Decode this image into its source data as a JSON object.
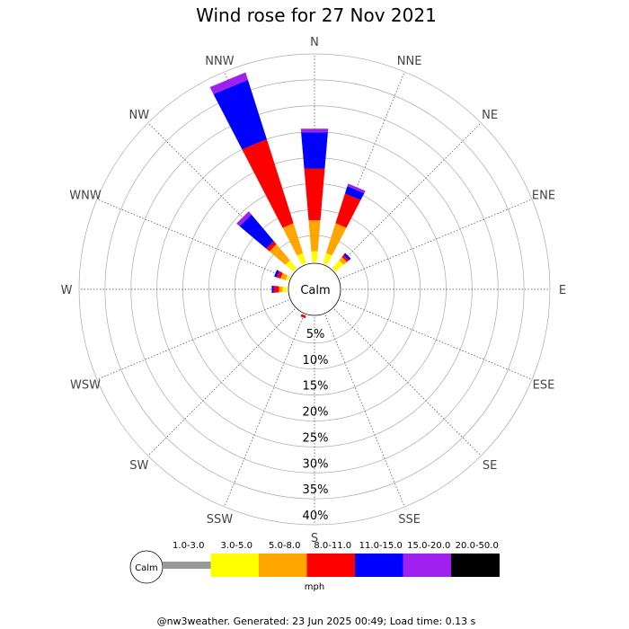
{
  "chart_data": {
    "type": "wind-rose",
    "title": "Wind rose for 27 Nov 2021",
    "directions": [
      "N",
      "NNE",
      "NE",
      "ENE",
      "E",
      "ESE",
      "SE",
      "SSE",
      "S",
      "SSW",
      "SW",
      "WSW",
      "W",
      "WNW",
      "NW",
      "NNW"
    ],
    "radial_ticks": [
      "5%",
      "10%",
      "15%",
      "20%",
      "25%",
      "30%",
      "35%",
      "40%"
    ],
    "radial_max": 40,
    "calm_label": "Calm",
    "units": "mph",
    "bins": [
      {
        "label": "1.0-3.0",
        "color": "#999999"
      },
      {
        "label": "3.0-5.0",
        "color": "#ffff00"
      },
      {
        "label": "5.0-8.0",
        "color": "#ffa500"
      },
      {
        "label": "8.0-11.0",
        "color": "#ff0000"
      },
      {
        "label": "11.0-15.0",
        "color": "#0000ff"
      },
      {
        "label": "15.0-20.0",
        "color": "#a020f0"
      },
      {
        "label": "20.0-50.0",
        "color": "#000000"
      }
    ],
    "frequencies": [
      {
        "direction": "N",
        "cumulative": [
          0,
          2.0,
          8.0,
          18.0,
          25.0,
          25.7,
          25.7
        ]
      },
      {
        "direction": "NNE",
        "cumulative": [
          0,
          2.0,
          8.0,
          14.0,
          15.5,
          16.0,
          16.0
        ]
      },
      {
        "direction": "NE",
        "cumulative": [
          0,
          2.0,
          2.8,
          3.3,
          3.8,
          3.8,
          3.8
        ]
      },
      {
        "direction": "ENE",
        "cumulative": [
          0,
          0,
          0,
          0,
          0,
          0,
          0
        ]
      },
      {
        "direction": "E",
        "cumulative": [
          0,
          0,
          0,
          0,
          0,
          0,
          0
        ]
      },
      {
        "direction": "ESE",
        "cumulative": [
          0,
          0,
          0,
          0,
          0,
          0,
          0
        ]
      },
      {
        "direction": "SE",
        "cumulative": [
          0,
          0,
          0,
          0,
          0,
          0,
          0
        ]
      },
      {
        "direction": "SSE",
        "cumulative": [
          0,
          0,
          0,
          0,
          0,
          0,
          0
        ]
      },
      {
        "direction": "S",
        "cumulative": [
          0,
          0,
          0,
          0,
          0,
          0,
          0
        ]
      },
      {
        "direction": "SSW",
        "cumulative": [
          0,
          0,
          0,
          0.5,
          0.5,
          0.5,
          0.5
        ]
      },
      {
        "direction": "SW",
        "cumulative": [
          0,
          0,
          0,
          0,
          0,
          0,
          0
        ]
      },
      {
        "direction": "WSW",
        "cumulative": [
          0,
          0,
          0,
          0,
          0,
          0,
          0
        ]
      },
      {
        "direction": "W",
        "cumulative": [
          0,
          0.8,
          1.5,
          2.5,
          2.9,
          2.9,
          2.9
        ]
      },
      {
        "direction": "WNW",
        "cumulative": [
          0,
          0.5,
          1.5,
          2.3,
          2.8,
          2.8,
          2.8
        ]
      },
      {
        "direction": "NW",
        "cumulative": [
          0,
          2.0,
          6.0,
          6.8,
          13.5,
          14.3,
          14.3
        ]
      },
      {
        "direction": "NNW",
        "cumulative": [
          0,
          2.0,
          8.0,
          25.0,
          37.0,
          38.5,
          38.5
        ]
      }
    ]
  },
  "footer": "@nw3weather.  Generated: 23 Jun 2025 00:49; Load time: 0.13 s"
}
